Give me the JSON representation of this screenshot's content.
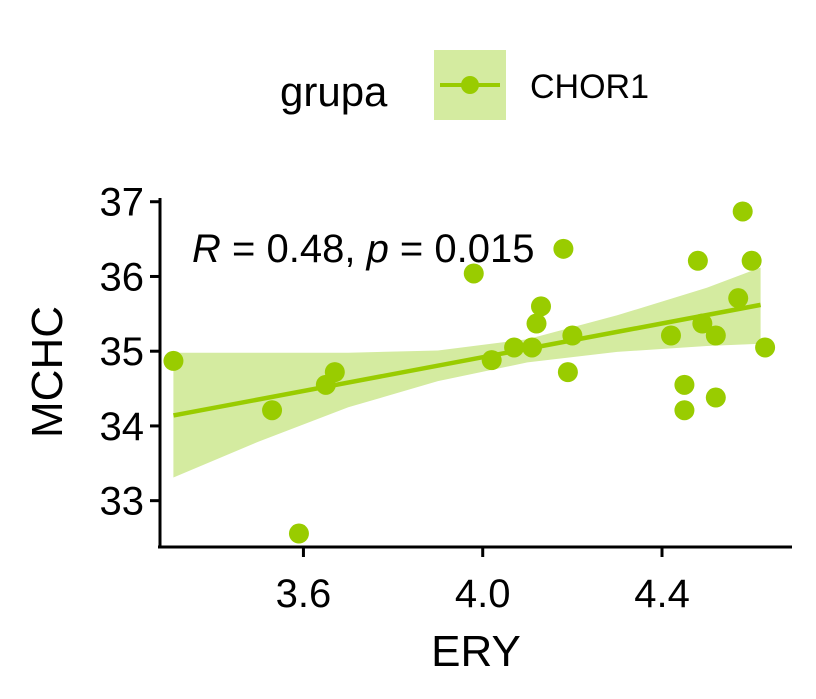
{
  "colors": {
    "series": "#99cc00",
    "band": "#d4eba0",
    "axis": "#000000"
  },
  "legend": {
    "title": "grupa",
    "items": [
      {
        "label": "CHOR1"
      }
    ]
  },
  "annotation": {
    "r_symbol": "R",
    "r_text": " = 0.48, ",
    "p_symbol": "p",
    "p_text": " = 0.015"
  },
  "chart_data": {
    "type": "scatter",
    "xlabel": "ERY",
    "ylabel": "MCHC",
    "xlim": [
      3.28,
      4.69
    ],
    "ylim": [
      32.38,
      37.05
    ],
    "x_ticks": [
      "3.6",
      "4.0",
      "4.4"
    ],
    "y_ticks": [
      "33",
      "34",
      "35",
      "36",
      "37"
    ],
    "legend_position": "top",
    "grid": false,
    "series": [
      {
        "name": "CHOR1",
        "points": [
          [
            3.31,
            34.87
          ],
          [
            3.53,
            34.21
          ],
          [
            3.59,
            32.56
          ],
          [
            3.65,
            34.55
          ],
          [
            3.67,
            34.72
          ],
          [
            3.98,
            36.04
          ],
          [
            4.02,
            34.88
          ],
          [
            4.07,
            35.05
          ],
          [
            4.11,
            35.05
          ],
          [
            4.12,
            35.37
          ],
          [
            4.13,
            35.6
          ],
          [
            4.18,
            36.37
          ],
          [
            4.19,
            34.72
          ],
          [
            4.2,
            35.21
          ],
          [
            4.42,
            35.21
          ],
          [
            4.45,
            34.55
          ],
          [
            4.45,
            34.21
          ],
          [
            4.48,
            36.21
          ],
          [
            4.49,
            35.37
          ],
          [
            4.52,
            35.21
          ],
          [
            4.52,
            34.38
          ],
          [
            4.57,
            35.71
          ],
          [
            4.58,
            36.87
          ],
          [
            4.6,
            36.21
          ],
          [
            4.63,
            35.05
          ]
        ]
      }
    ],
    "fit": {
      "line": [
        [
          3.31,
          34.14
        ],
        [
          4.62,
          35.62
        ]
      ],
      "band_upper": [
        [
          3.31,
          34.98
        ],
        [
          3.5,
          34.98
        ],
        [
          3.7,
          34.98
        ],
        [
          3.9,
          35.01
        ],
        [
          4.1,
          35.16
        ],
        [
          4.3,
          35.48
        ],
        [
          4.5,
          35.85
        ],
        [
          4.62,
          36.12
        ]
      ],
      "band_lower": [
        [
          3.31,
          33.31
        ],
        [
          3.5,
          33.79
        ],
        [
          3.7,
          34.25
        ],
        [
          3.9,
          34.6
        ],
        [
          4.1,
          34.85
        ],
        [
          4.3,
          34.99
        ],
        [
          4.5,
          35.07
        ],
        [
          4.62,
          35.1
        ]
      ]
    }
  }
}
